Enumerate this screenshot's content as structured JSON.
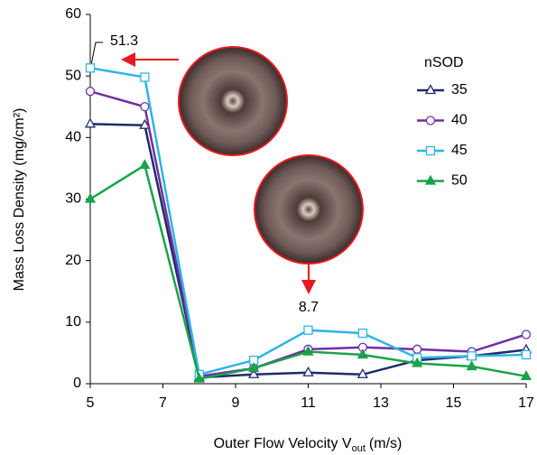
{
  "chart_data": {
    "type": "line",
    "ylabel": "Mass Loss Density (mg/cm²)",
    "xlabel": {
      "main": "Outer Flow Velocity V",
      "sub": "out",
      "unit": "(m/s)"
    },
    "x": [
      5,
      6.5,
      8,
      9.5,
      11,
      12.5,
      14,
      15.5,
      17
    ],
    "xlim": [
      5,
      17
    ],
    "xticks": [
      5,
      7,
      9,
      11,
      13,
      15,
      17
    ],
    "ylim": [
      0,
      60
    ],
    "yticks": [
      0,
      10,
      20,
      30,
      40,
      50,
      60
    ],
    "grid": false,
    "legend_title": "nSOD",
    "legend": "upper right",
    "series": [
      {
        "name": "35",
        "color": "#1f2a6b",
        "marker": "triangle",
        "filled": false,
        "values": [
          42.2,
          42,
          1,
          1.5,
          1.8,
          1.5,
          3.8,
          4.5,
          5.5
        ]
      },
      {
        "name": "40",
        "color": "#7030a0",
        "marker": "circle",
        "filled": false,
        "values": [
          47.5,
          45,
          1.2,
          2.5,
          5.6,
          5.9,
          5.6,
          5.2,
          8
        ]
      },
      {
        "name": "45",
        "color": "#2fb4e6",
        "marker": "square",
        "filled": false,
        "values": [
          51.3,
          49.8,
          1.5,
          3.8,
          8.7,
          8.2,
          4.2,
          4.5,
          4.7
        ]
      },
      {
        "name": "50",
        "color": "#1aa34a",
        "marker": "triangle",
        "filled": true,
        "values": [
          30,
          35.5,
          0.8,
          2.5,
          5.2,
          4.7,
          3.3,
          2.8,
          1.2
        ]
      }
    ],
    "annotations": [
      "51.3",
      "8.7"
    ]
  }
}
